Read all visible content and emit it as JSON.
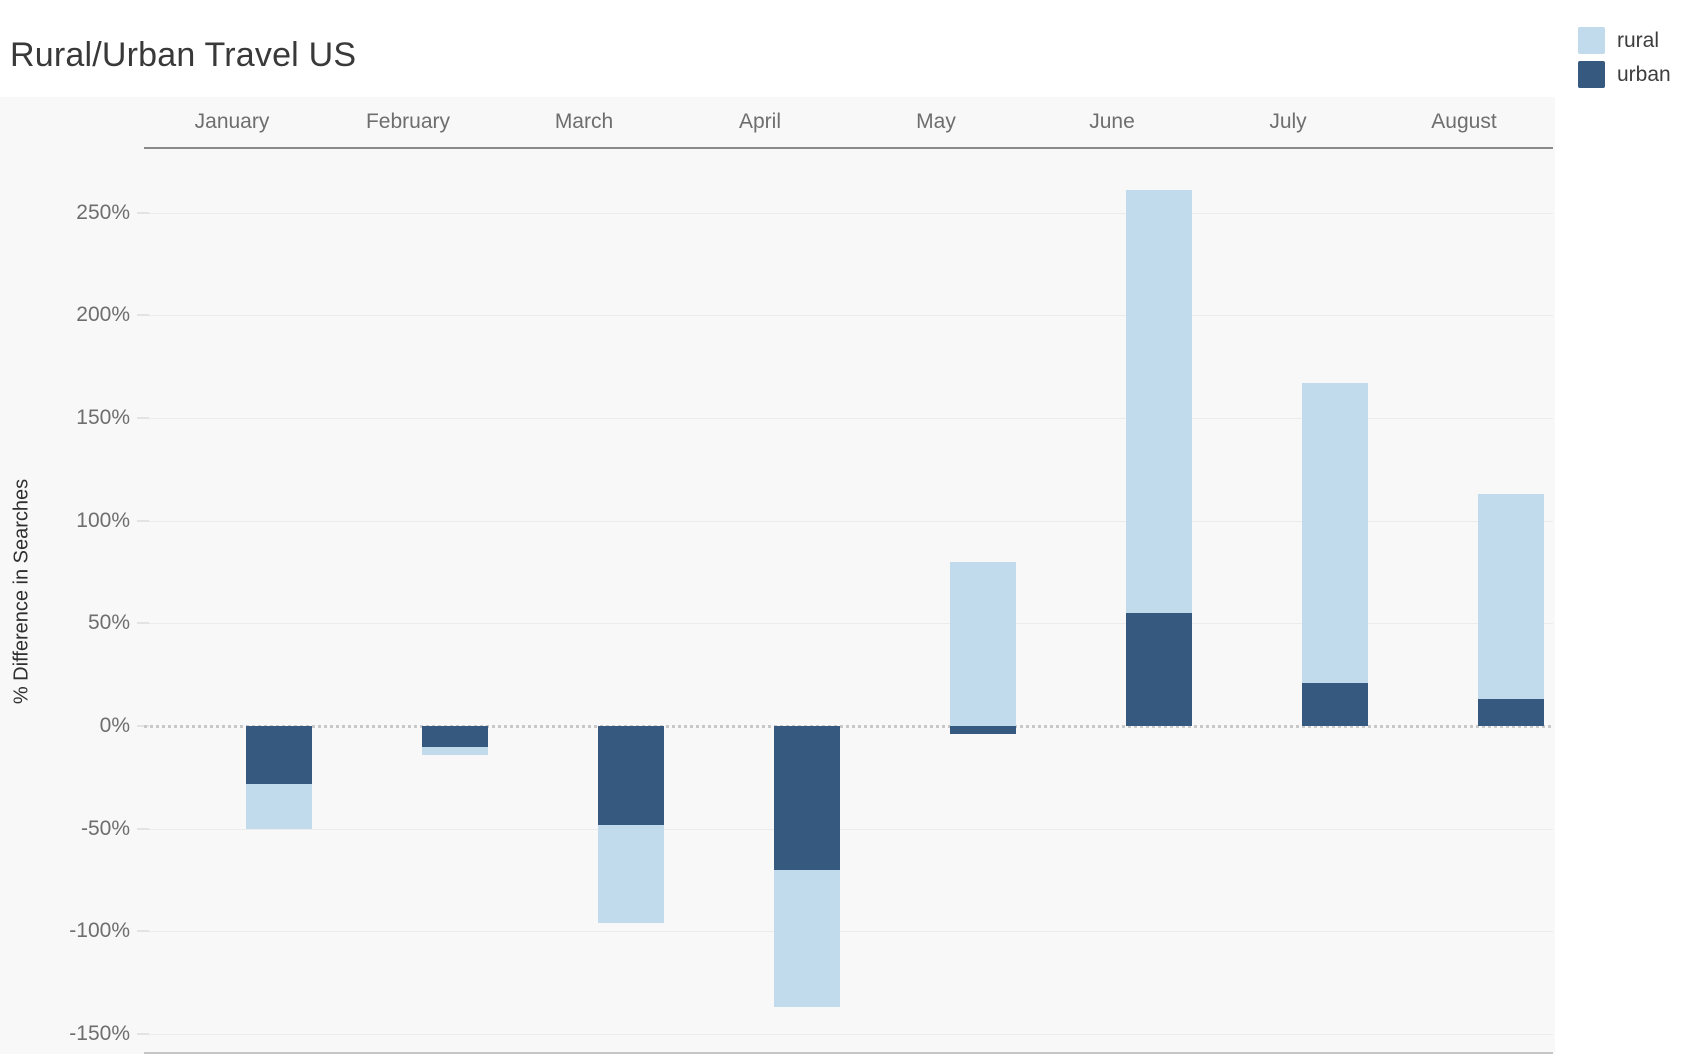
{
  "title": "Rural/Urban Travel US",
  "legend": {
    "items": [
      {
        "label": "rural",
        "color": "#c1dbed"
      },
      {
        "label": "urban",
        "color": "#35597f"
      }
    ]
  },
  "y_axis": {
    "title": "% Difference in Searches"
  },
  "chart_data": {
    "type": "bar",
    "stacked": true,
    "title": "Rural/Urban Travel US",
    "xlabel": "",
    "ylabel": "% Difference in Searches",
    "categories": [
      "January",
      "February",
      "March",
      "April",
      "May",
      "June",
      "July",
      "August"
    ],
    "series": [
      {
        "name": "rural",
        "color": "#c1dbed",
        "values": [
          -22,
          -4,
          -48,
          -67,
          80,
          206,
          146,
          100
        ]
      },
      {
        "name": "urban",
        "color": "#35597f",
        "values": [
          -28,
          -10,
          -48,
          -70,
          -4,
          55,
          21,
          13
        ]
      }
    ],
    "stack_order_from_zero": [
      "urban",
      "rural"
    ],
    "y_ticks": [
      {
        "value": 250,
        "label": "250%"
      },
      {
        "value": 200,
        "label": "200%"
      },
      {
        "value": 150,
        "label": "150%"
      },
      {
        "value": 100,
        "label": "100%"
      },
      {
        "value": 50,
        "label": "50%"
      },
      {
        "value": 0,
        "label": "0%"
      },
      {
        "value": -50,
        "label": "-50%"
      },
      {
        "value": -100,
        "label": "-100%"
      },
      {
        "value": -150,
        "label": "-150%"
      }
    ],
    "ylim": [
      -159,
      281
    ],
    "grid": "subtle-horizontal",
    "zero_line_style": "dotted",
    "legend_position": "top-right",
    "x_axis_position": "top"
  }
}
